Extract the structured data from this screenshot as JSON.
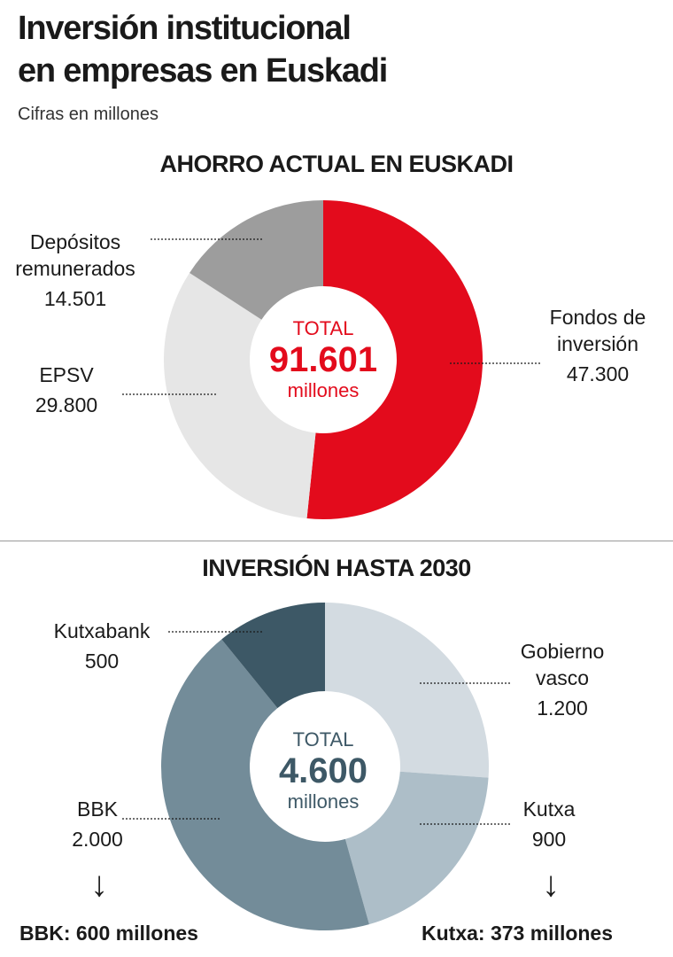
{
  "header": {
    "title_line1": "Inversión institucional",
    "title_line2": "en empresas en Euskadi",
    "subtitle": "Cifras en millones"
  },
  "chart_data": [
    {
      "type": "pie",
      "title": "AHORRO ACTUAL EN EUSKADI",
      "center": {
        "label": "TOTAL",
        "value": "91.601",
        "unit": "millones"
      },
      "slices": [
        {
          "name_lines": [
            "Fondos de",
            "inversión"
          ],
          "value": 47300,
          "value_label": "47.300",
          "color": "#e30b1c"
        },
        {
          "name_lines": [
            "EPSV"
          ],
          "value": 29800,
          "value_label": "29.800",
          "color": "#e6e6e6"
        },
        {
          "name_lines": [
            "Depósitos",
            "remunerados"
          ],
          "value": 14501,
          "value_label": "14.501",
          "color": "#9d9d9d"
        }
      ]
    },
    {
      "type": "pie",
      "title": "INVERSIÓN HASTA 2030",
      "center": {
        "label": "TOTAL",
        "value": "4.600",
        "unit": "millones"
      },
      "slices": [
        {
          "name_lines": [
            "Gobierno",
            "vasco"
          ],
          "value": 1200,
          "value_label": "1.200",
          "color": "#d3dbe1"
        },
        {
          "name_lines": [
            "Kutxa"
          ],
          "value": 900,
          "value_label": "900",
          "color": "#adbec8"
        },
        {
          "name_lines": [
            "BBK"
          ],
          "value": 2000,
          "value_label": "2.000",
          "color": "#738c99"
        },
        {
          "name_lines": [
            "Kutxabank"
          ],
          "value": 500,
          "value_label": "500",
          "color": "#3d5866"
        }
      ],
      "footnotes": {
        "left": "BBK: 600 millones",
        "right": "Kutxa: 373 millones"
      }
    }
  ]
}
